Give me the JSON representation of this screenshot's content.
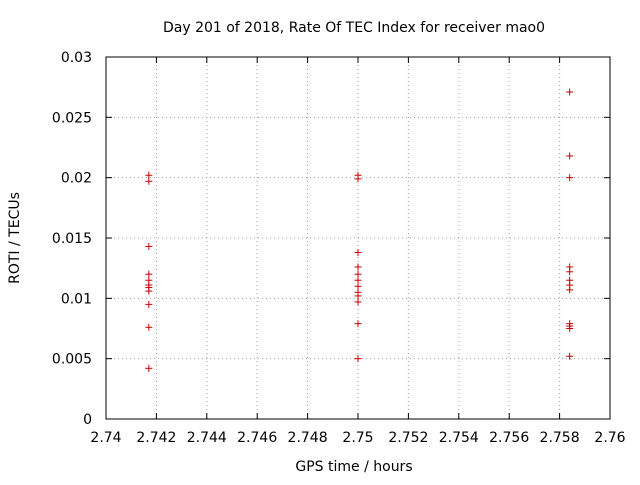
{
  "chart_data": {
    "type": "scatter",
    "title": "Day 201 of 2018, Rate Of TEC Index for receiver mao0",
    "xlabel": "GPS time / hours",
    "ylabel": "ROTI / TECUs",
    "xlim": [
      2.74,
      2.76
    ],
    "ylim": [
      0,
      0.03
    ],
    "xticks": [
      2.74,
      2.742,
      2.744,
      2.746,
      2.748,
      2.75,
      2.752,
      2.754,
      2.756,
      2.758,
      2.76
    ],
    "xtick_labels": [
      "2.74",
      "2.742",
      "2.744",
      "2.746",
      "2.748",
      "2.75",
      "2.752",
      "2.754",
      "2.756",
      "2.758",
      "2.76"
    ],
    "yticks": [
      0,
      0.005,
      0.01,
      0.015,
      0.02,
      0.025,
      0.03
    ],
    "ytick_labels": [
      "0",
      "0.005",
      "0.01",
      "0.015",
      "0.02",
      "0.025",
      "0.03"
    ],
    "grid": true,
    "marker": "+",
    "color": "#cc0000",
    "points": [
      {
        "x": 2.7417,
        "y": 0.0202
      },
      {
        "x": 2.7417,
        "y": 0.0197
      },
      {
        "x": 2.7417,
        "y": 0.0143
      },
      {
        "x": 2.7417,
        "y": 0.012
      },
      {
        "x": 2.7417,
        "y": 0.0115
      },
      {
        "x": 2.7417,
        "y": 0.0111
      },
      {
        "x": 2.7417,
        "y": 0.0109
      },
      {
        "x": 2.7417,
        "y": 0.0106
      },
      {
        "x": 2.7417,
        "y": 0.0095
      },
      {
        "x": 2.7417,
        "y": 0.0076
      },
      {
        "x": 2.7417,
        "y": 0.0042
      },
      {
        "x": 2.75,
        "y": 0.0202
      },
      {
        "x": 2.75,
        "y": 0.0199
      },
      {
        "x": 2.75,
        "y": 0.0138
      },
      {
        "x": 2.75,
        "y": 0.0126
      },
      {
        "x": 2.75,
        "y": 0.012
      },
      {
        "x": 2.75,
        "y": 0.0115
      },
      {
        "x": 2.75,
        "y": 0.011
      },
      {
        "x": 2.75,
        "y": 0.0105
      },
      {
        "x": 2.75,
        "y": 0.0102
      },
      {
        "x": 2.75,
        "y": 0.0097
      },
      {
        "x": 2.75,
        "y": 0.0079
      },
      {
        "x": 2.75,
        "y": 0.005
      },
      {
        "x": 2.7584,
        "y": 0.0271
      },
      {
        "x": 2.7584,
        "y": 0.0218
      },
      {
        "x": 2.7584,
        "y": 0.02
      },
      {
        "x": 2.7584,
        "y": 0.0126
      },
      {
        "x": 2.7584,
        "y": 0.0122
      },
      {
        "x": 2.7584,
        "y": 0.0115
      },
      {
        "x": 2.7584,
        "y": 0.0111
      },
      {
        "x": 2.7584,
        "y": 0.0107
      },
      {
        "x": 2.7584,
        "y": 0.0079
      },
      {
        "x": 2.7584,
        "y": 0.0077
      },
      {
        "x": 2.7584,
        "y": 0.0075
      },
      {
        "x": 2.7584,
        "y": 0.0052
      }
    ]
  }
}
